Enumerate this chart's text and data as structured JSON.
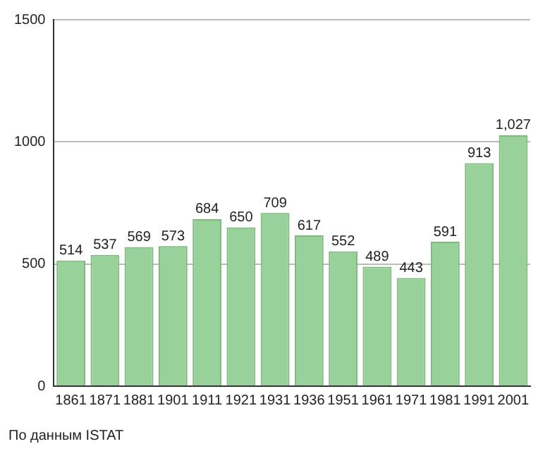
{
  "chart_data": {
    "type": "bar",
    "categories": [
      "1861",
      "1871",
      "1881",
      "1901",
      "1911",
      "1921",
      "1931",
      "1936",
      "1951",
      "1961",
      "1971",
      "1981",
      "1991",
      "2001"
    ],
    "values": [
      514,
      537,
      569,
      573,
      684,
      650,
      709,
      617,
      552,
      489,
      443,
      591,
      913,
      1027
    ],
    "value_labels": [
      "514",
      "537",
      "569",
      "573",
      "684",
      "650",
      "709",
      "617",
      "552",
      "489",
      "443",
      "591",
      "913",
      "1,027"
    ],
    "color": "#99d19a",
    "ylim": [
      0,
      1500
    ],
    "yticks": [
      0,
      500,
      1000,
      1500
    ],
    "grid": "y",
    "legend": false,
    "annotations": [
      "По данным ISTAT"
    ]
  }
}
